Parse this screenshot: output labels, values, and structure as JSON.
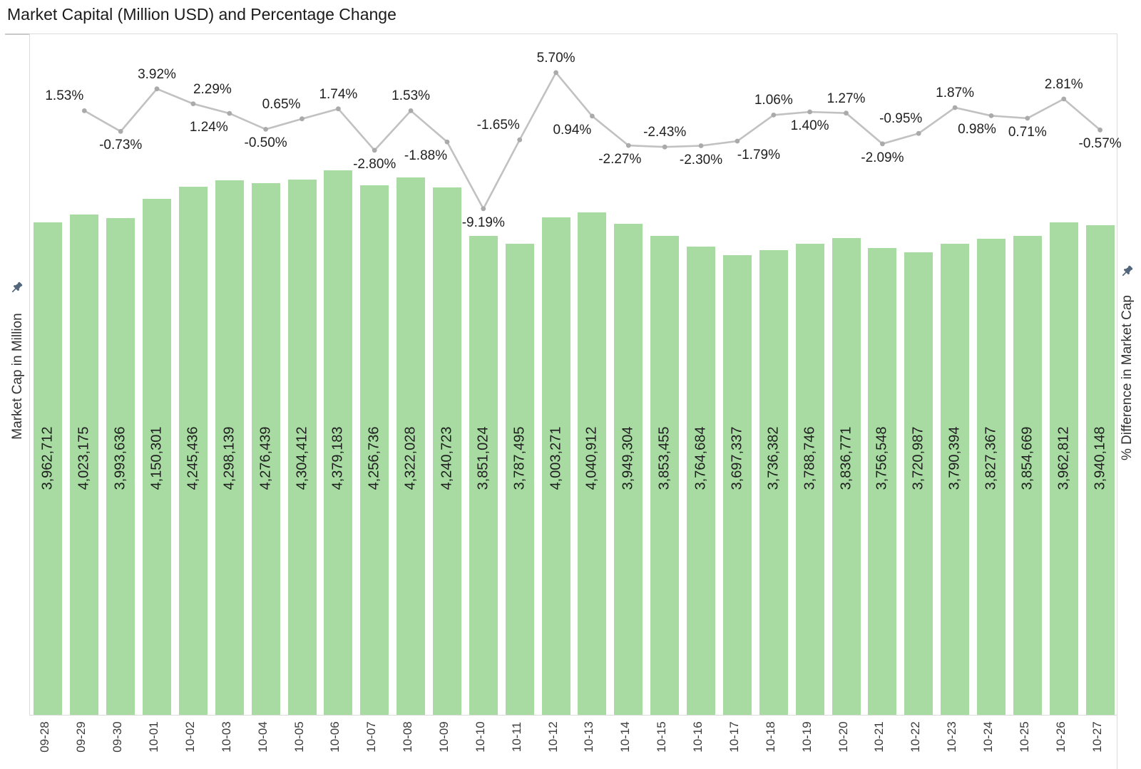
{
  "title": "Market Capital (Million USD) and Percentage Change",
  "axes": {
    "left": {
      "title": "Market Cap in Million"
    },
    "right": {
      "title": "% Difference in Market Cap"
    }
  },
  "chart_data": {
    "type": "combo-bar-line",
    "title": "Market Capital (Million USD) and Percentage Change",
    "categories": [
      "09-28",
      "09-29",
      "09-30",
      "10-01",
      "10-02",
      "10-03",
      "10-04",
      "10-05",
      "10-06",
      "10-07",
      "10-08",
      "10-09",
      "10-10",
      "10-11",
      "10-12",
      "10-13",
      "10-14",
      "10-15",
      "10-16",
      "10-17",
      "10-18",
      "10-19",
      "10-20",
      "10-21",
      "10-22",
      "10-23",
      "10-24",
      "10-25",
      "10-26",
      "10-27"
    ],
    "series": [
      {
        "name": "Market Cap in Million",
        "type": "bar",
        "color": "#a7dba2",
        "values": [
          3962712,
          4023175,
          3993636,
          4150301,
          4245436,
          4298139,
          4276439,
          4304412,
          4379183,
          4256736,
          4322028,
          4240723,
          3851024,
          3787495,
          4003271,
          4040912,
          3949304,
          3853455,
          3764684,
          3697337,
          3736382,
          3788746,
          3836771,
          3756548,
          3720987,
          3790394,
          3827367,
          3854669,
          3962812,
          3940148
        ],
        "value_labels_shown": true
      },
      {
        "name": "% Difference in Market Cap",
        "type": "line",
        "color": "#c1c1c1",
        "marker_color": "#aaaaaa",
        "categories": [
          "09-29",
          "09-30",
          "10-01",
          "10-02",
          "10-03",
          "10-04",
          "10-05",
          "10-06",
          "10-07",
          "10-08",
          "10-09",
          "10-10",
          "10-11",
          "10-12",
          "10-13",
          "10-14",
          "10-15",
          "10-16",
          "10-17",
          "10-18",
          "10-19",
          "10-20",
          "10-21",
          "10-22",
          "10-23",
          "10-24",
          "10-25",
          "10-26",
          "10-27"
        ],
        "values": [
          1.53,
          -0.73,
          3.92,
          2.29,
          1.24,
          -0.5,
          0.65,
          1.74,
          -2.8,
          1.53,
          -1.88,
          -9.19,
          -1.65,
          5.7,
          0.94,
          -2.27,
          -2.43,
          -2.3,
          -1.79,
          1.06,
          1.4,
          1.27,
          -2.09,
          -0.95,
          1.87,
          0.98,
          0.71,
          2.81,
          -0.57
        ],
        "labels_shown": true,
        "label_side": [
          "above",
          "below",
          "above",
          "above",
          "below",
          "below",
          "above",
          "above",
          "below",
          "above",
          "below",
          "below",
          "above",
          "above",
          "below",
          "below",
          "above",
          "below",
          "below",
          "above",
          "below",
          "above",
          "below",
          "above",
          "above",
          "below",
          "below",
          "above",
          "below"
        ],
        "label_dx": [
          -28,
          0,
          0,
          27,
          -29,
          0,
          -29,
          0,
          0,
          0,
          -30,
          0,
          -30,
          0,
          -28,
          -12,
          0,
          0,
          30,
          0,
          0,
          0,
          0,
          -25,
          0,
          -20,
          0,
          0,
          0
        ]
      }
    ],
    "bar_axis": {
      "min": 0,
      "ticks_visible": false
    },
    "line_axis": {
      "ticks_visible": false
    },
    "grid": "off",
    "legend": "none"
  },
  "colors": {
    "bar": "#a7dba2",
    "line": "#c1c1c1",
    "marker": "#aaaaaa",
    "pin": "#53667c",
    "border": "#dcdcdc",
    "label_text": "#1f1f1f",
    "tick_text": "#3c3c3c"
  }
}
